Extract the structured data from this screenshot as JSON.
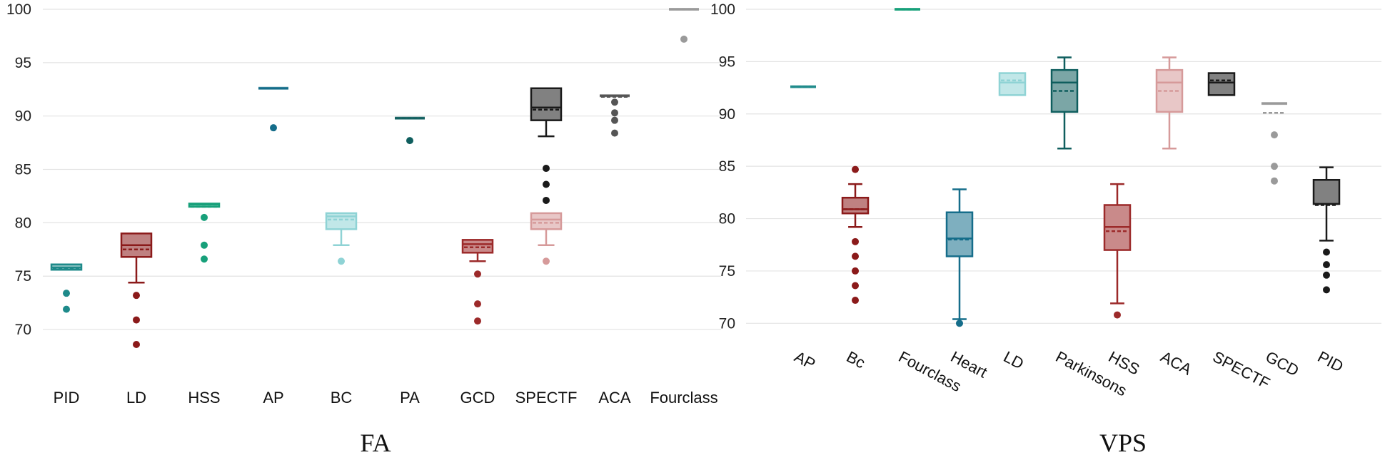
{
  "chart_data": [
    {
      "type": "box",
      "title": "FA",
      "ylim": [
        68,
        100
      ],
      "yticks": [
        70,
        75,
        80,
        85,
        90,
        95,
        100
      ],
      "grid": true,
      "categories": [
        "PID",
        "LD",
        "HSS",
        "AP",
        "BC",
        "PA",
        "GCD",
        "SPECTF",
        "ACA",
        "Fourclass"
      ],
      "boxes": [
        {
          "name": "PID",
          "color": "#1e8a8a",
          "q1": 75.6,
          "q3": 76.1,
          "median": 75.8,
          "mean": 75.7,
          "wlo": 75.6,
          "whi": 76.1,
          "outliers": [
            73.4,
            71.9
          ],
          "filled": true
        },
        {
          "name": "LD",
          "color": "#8b1a1a",
          "q1": 76.8,
          "q3": 79.0,
          "median": 77.9,
          "mean": 77.5,
          "wlo": 74.4,
          "whi": 79.0,
          "outliers": [
            73.2,
            70.9,
            68.6
          ],
          "filled": true
        },
        {
          "name": "HSS",
          "color": "#17a07a",
          "q1": 81.5,
          "q3": 81.8,
          "median": 81.7,
          "mean": 81.5,
          "wlo": 81.5,
          "whi": 81.8,
          "outliers": [
            80.5,
            77.9,
            76.6
          ],
          "filled": true
        },
        {
          "name": "AP",
          "color": "#156d8a",
          "q1": 92.6,
          "q3": 92.6,
          "median": 92.6,
          "mean": 92.6,
          "wlo": 92.6,
          "whi": 92.6,
          "outliers": [
            88.9
          ],
          "filled": true
        },
        {
          "name": "BC",
          "color": "#8fd3d5",
          "q1": 79.4,
          "q3": 80.9,
          "median": 80.6,
          "mean": 80.3,
          "wlo": 77.9,
          "whi": 80.9,
          "outliers": [
            76.4
          ],
          "filled": true
        },
        {
          "name": "PA",
          "color": "#0f5e5e",
          "q1": 89.8,
          "q3": 89.8,
          "median": 89.8,
          "mean": 89.8,
          "wlo": 89.8,
          "whi": 89.8,
          "outliers": [
            87.7
          ],
          "filled": true
        },
        {
          "name": "GCD",
          "color": "#9c2a2a",
          "q1": 77.2,
          "q3": 78.4,
          "median": 78.0,
          "mean": 77.7,
          "wlo": 76.4,
          "whi": 78.4,
          "outliers": [
            75.2,
            72.4,
            70.8
          ],
          "filled": true
        },
        {
          "name": "SPECTF",
          "color": "#1a1a1a",
          "q1": 89.6,
          "q3": 92.6,
          "median": 90.8,
          "mean": 90.6,
          "wlo": 88.1,
          "whi": 92.6,
          "outliers": [
            85.1,
            83.6,
            82.1
          ],
          "filled": true
        },
        {
          "name": "SPECTF (second box)",
          "color": "#d69a9a",
          "q1": 79.4,
          "q3": 80.9,
          "median": 80.3,
          "mean": 80.0,
          "wlo": 77.9,
          "whi": 80.9,
          "outliers": [
            76.4
          ],
          "filled": true
        },
        {
          "name": "ACA",
          "color": "#555555",
          "q1": 91.9,
          "q3": 91.9,
          "median": 91.9,
          "mean": 91.8,
          "wlo": 91.9,
          "whi": 91.9,
          "outliers": [
            91.3,
            90.3,
            89.6,
            88.4
          ],
          "filled": true
        },
        {
          "name": "Fourclass",
          "color": "#9a9a9a",
          "q1": 100,
          "q3": 100,
          "median": 100,
          "mean": 100,
          "wlo": 100,
          "whi": 100,
          "outliers": [
            97.2
          ],
          "filled": true
        }
      ]
    },
    {
      "type": "box",
      "title": "VPS",
      "ylim": [
        69,
        100
      ],
      "yticks": [
        70,
        75,
        80,
        85,
        90,
        95,
        100
      ],
      "grid": true,
      "categories": [
        "AP",
        "Bc",
        "Fourclass",
        "Heart",
        "LD",
        "Parkinsons",
        "HSS",
        "ACA",
        "SPECTF",
        "GCD",
        "PID"
      ],
      "boxes": [
        {
          "name": "AP",
          "color": "#1e8a8a",
          "q1": 92.6,
          "q3": 92.6,
          "median": 92.6,
          "mean": 92.6,
          "wlo": 92.6,
          "whi": 92.6,
          "outliers": [],
          "filled": true
        },
        {
          "name": "Bc",
          "color": "#8b1a1a",
          "q1": 80.5,
          "q3": 82.0,
          "median": 80.9,
          "mean": 80.9,
          "wlo": 79.2,
          "whi": 83.3,
          "outliers": [
            84.7,
            77.8,
            76.4,
            75.0,
            73.6,
            72.2
          ],
          "filled": true
        },
        {
          "name": "Fourclass",
          "color": "#17a07a",
          "q1": 100,
          "q3": 100,
          "median": 100,
          "mean": 100,
          "wlo": 100,
          "whi": 100,
          "outliers": [],
          "filled": true
        },
        {
          "name": "Heart",
          "color": "#156d8a",
          "q1": 76.4,
          "q3": 80.6,
          "median": 78.1,
          "mean": 78.0,
          "wlo": 70.4,
          "whi": 82.8,
          "outliers": [
            70.0
          ],
          "filled": true
        },
        {
          "name": "LD",
          "color": "#8fd3d5",
          "q1": 91.8,
          "q3": 93.9,
          "median": 93.0,
          "mean": 93.2,
          "wlo": 91.8,
          "whi": 93.9,
          "outliers": [],
          "filled": true
        },
        {
          "name": "Parkinsons",
          "color": "#0f5e5e",
          "q1": 90.2,
          "q3": 94.2,
          "median": 93.0,
          "mean": 92.2,
          "wlo": 86.7,
          "whi": 95.4,
          "outliers": [],
          "filled": true
        },
        {
          "name": "HSS",
          "color": "#9c2a2a",
          "q1": 77.0,
          "q3": 81.3,
          "median": 79.2,
          "mean": 78.8,
          "wlo": 71.9,
          "whi": 83.3,
          "outliers": [
            70.8
          ],
          "filled": true
        },
        {
          "name": "ACA",
          "color": "#d69a9a",
          "q1": 90.2,
          "q3": 94.2,
          "median": 93.0,
          "mean": 92.2,
          "wlo": 86.7,
          "whi": 95.4,
          "outliers": [],
          "filled": true
        },
        {
          "name": "SPECTF",
          "color": "#1a1a1a",
          "q1": 91.8,
          "q3": 93.9,
          "median": 93.0,
          "mean": 93.2,
          "wlo": 91.8,
          "whi": 93.9,
          "outliers": [],
          "filled": true
        },
        {
          "name": "GCD",
          "color": "#9a9a9a",
          "q1": 91.0,
          "q3": 91.0,
          "median": 91.0,
          "mean": 90.1,
          "wlo": 91.0,
          "whi": 91.0,
          "outliers": [
            88.0,
            85.0,
            83.6
          ],
          "filled": true
        },
        {
          "name": "PID",
          "color": "#1a1a1a",
          "q1": 81.4,
          "q3": 83.7,
          "median": 81.4,
          "mean": 81.3,
          "wlo": 77.9,
          "whi": 84.9,
          "outliers": [
            76.8,
            75.6,
            74.6,
            73.2
          ],
          "filled": true
        }
      ]
    }
  ]
}
